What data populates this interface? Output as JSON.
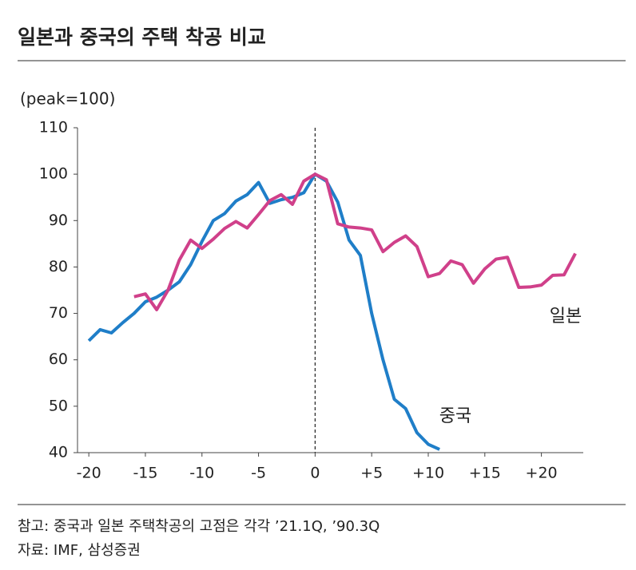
{
  "chart_data": {
    "type": "line",
    "title": "일본과 중국의 주택 착공 비교",
    "y_unit": "(peak=100)",
    "x": [
      -20,
      -19,
      -18,
      -17,
      -16,
      -15,
      -14,
      -13,
      -12,
      -11,
      -10,
      -9,
      -8,
      -7,
      -6,
      -5,
      -4,
      -3,
      -2,
      -1,
      0,
      1,
      2,
      3,
      4,
      5,
      6,
      7,
      8,
      9,
      10,
      11,
      12,
      13,
      14,
      15,
      16,
      17,
      18,
      19,
      20,
      21,
      22,
      23
    ],
    "series": [
      {
        "name": "중국",
        "color": "#1f7ec8",
        "values": [
          64.1,
          66.5,
          65.8,
          68,
          70,
          72.5,
          73.5,
          75,
          76.8,
          80.5,
          85.5,
          90,
          91.5,
          94.2,
          95.6,
          98.2,
          93.7,
          94.5,
          95,
          96,
          100,
          98.5,
          94,
          85.8,
          82.5,
          70,
          60,
          51.5,
          49.5,
          44.3,
          41.8,
          40.7,
          null,
          null,
          null,
          null,
          null,
          null,
          null,
          null,
          null,
          null,
          null,
          null
        ]
      },
      {
        "name": "일본",
        "color": "#d0408a",
        "values": [
          null,
          null,
          null,
          null,
          73.6,
          74.2,
          70.8,
          75,
          81.5,
          85.8,
          84,
          86,
          88.3,
          89.8,
          88.4,
          91.3,
          94.3,
          95.6,
          93.5,
          98.5,
          100,
          98.8,
          89.3,
          88.6,
          88.4,
          88,
          83.3,
          85.3,
          86.7,
          84.4,
          77.9,
          78.6,
          81.3,
          80.5,
          76.5,
          79.6,
          81.7,
          82.1,
          75.6,
          75.7,
          76.1,
          78.2,
          78.3,
          82.9
        ]
      }
    ],
    "xlim": [
      -21,
      23.7
    ],
    "ylim": [
      40,
      110
    ],
    "xticks": [
      -20,
      -15,
      -10,
      -5,
      0,
      {
        "value": 5,
        "label": "+5"
      },
      {
        "value": 10,
        "label": "+10"
      },
      {
        "value": 15,
        "label": "+15"
      },
      {
        "value": 20,
        "label": "+20"
      }
    ],
    "yticks": [
      40,
      50,
      60,
      70,
      80,
      90,
      100,
      110
    ],
    "reference_line_x": 0,
    "notes": [
      "참고: 중국과 일본 주택착공의 고점은 각각 ’21.1Q, ’90.3Q",
      "자료: IMF, 삼성증권"
    ]
  }
}
